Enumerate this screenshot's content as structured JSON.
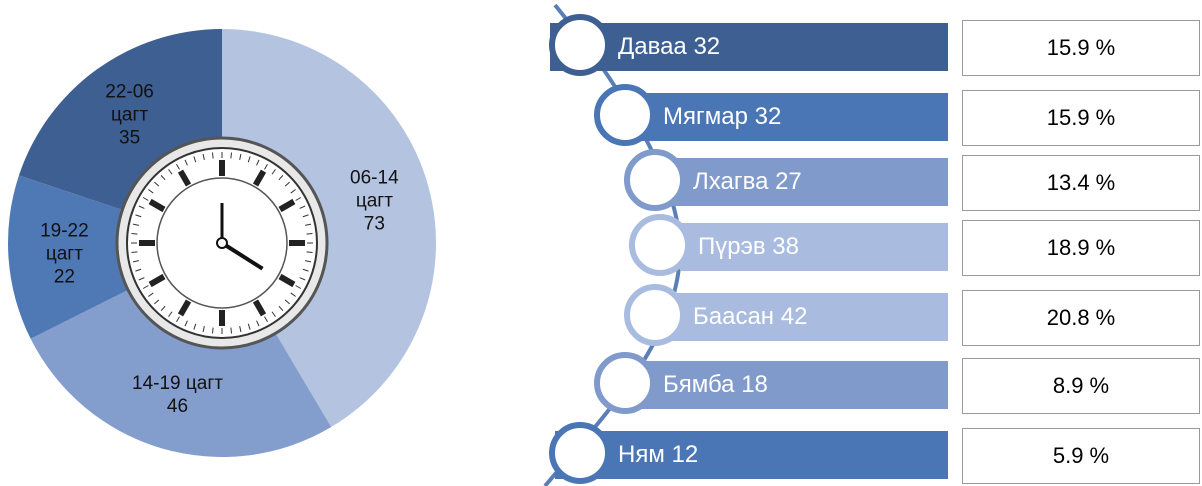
{
  "chart_data": [
    {
      "type": "doughnut",
      "categories": [
        "06-14 цагт",
        "14-19 цагт",
        "19-22 цагт",
        "22-06 цагт"
      ],
      "values": [
        73,
        46,
        22,
        35
      ],
      "colors": [
        "#b4c3e0",
        "#839dcd",
        "#4f79b5",
        "#3e5f91"
      ]
    },
    {
      "type": "list",
      "items": [
        {
          "label": "Даваа 32",
          "percent": "15.9 %",
          "color": "#3e5f91"
        },
        {
          "label": "Мягмар 32",
          "percent": "15.9 %",
          "color": "#4a76b6"
        },
        {
          "label": "Лхагва 27",
          "percent": "13.4 %",
          "color": "#7f9acb"
        },
        {
          "label": "Пүрэв 38",
          "percent": "18.9 %",
          "color": "#a9bce0"
        },
        {
          "label": "Баасан 42",
          "percent": "20.8 %",
          "color": "#a9bce0"
        },
        {
          "label": "Бямба 18",
          "percent": "8.9 %",
          "color": "#7f9acb"
        },
        {
          "label": "Ням 12",
          "percent": "5.9  %",
          "color": "#4a76b6"
        }
      ]
    }
  ]
}
